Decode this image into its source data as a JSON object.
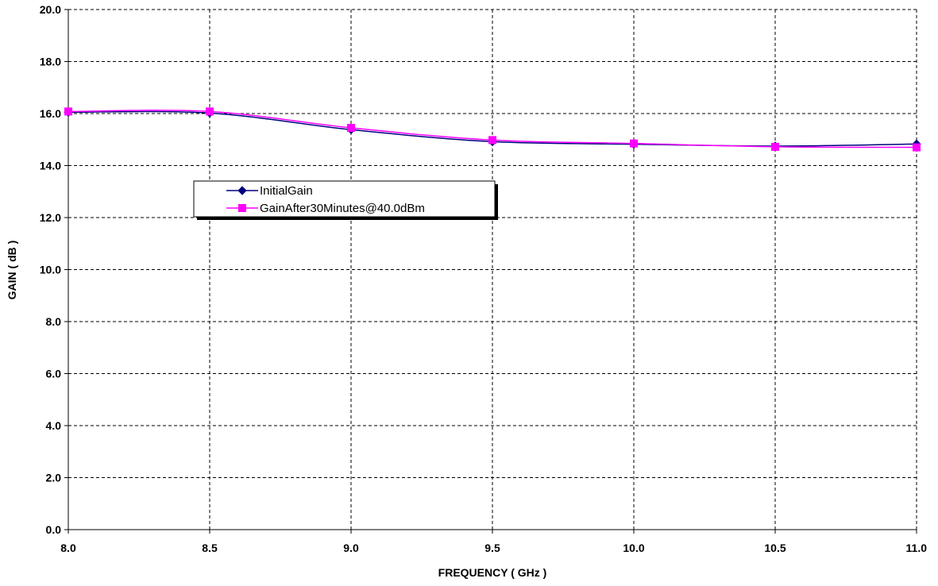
{
  "chart_data": {
    "type": "line",
    "xlabel": "FREQUENCY ( GHz )",
    "ylabel": "GAIN ( dB )",
    "xlim": [
      8.0,
      11.0
    ],
    "ylim": [
      0.0,
      20.0
    ],
    "x_ticks": [
      "8.0",
      "8.5",
      "9.0",
      "9.5",
      "10.0",
      "10.5",
      "11.0"
    ],
    "y_ticks": [
      "0.0",
      "2.0",
      "4.0",
      "6.0",
      "8.0",
      "10.0",
      "12.0",
      "14.0",
      "16.0",
      "18.0",
      "20.0"
    ],
    "grid": true,
    "legend_position": "center-left",
    "x": [
      8.0,
      8.5,
      9.0,
      9.5,
      10.0,
      10.5,
      11.0
    ],
    "series": [
      {
        "name": "InitialGain",
        "color": "#000080",
        "marker": "diamond",
        "values": [
          16.05,
          16.02,
          15.38,
          14.92,
          14.82,
          14.75,
          14.83
        ]
      },
      {
        "name": "GainAfter30Minutes@40.0dBm",
        "color": "#ff00ff",
        "marker": "square",
        "values": [
          16.08,
          16.08,
          15.45,
          14.98,
          14.85,
          14.72,
          14.7
        ]
      }
    ]
  }
}
